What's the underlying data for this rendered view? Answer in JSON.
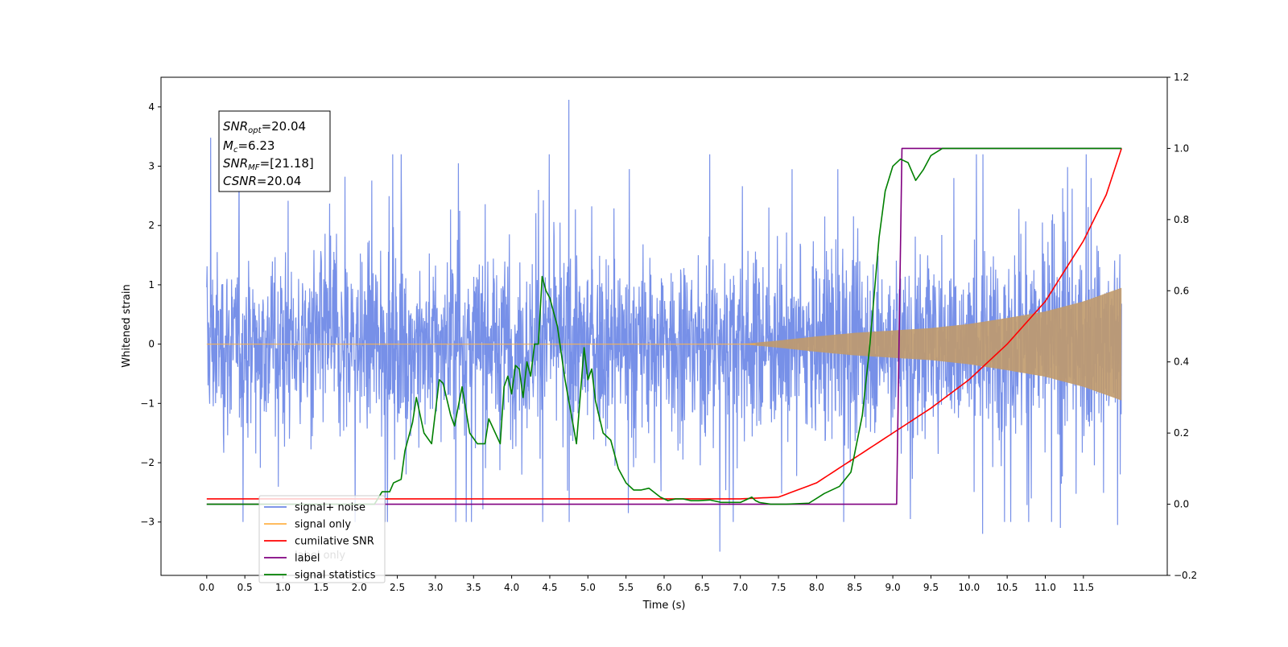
{
  "chart_data": {
    "type": "line",
    "xlabel": "Time (s)",
    "ylabel": "Whitened strain",
    "xlim": [
      -0.6,
      12.6
    ],
    "ylim": [
      -3.9,
      4.5
    ],
    "ylim_right": [
      -0.2,
      1.2
    ],
    "x_ticks": [
      0.0,
      0.5,
      1.0,
      1.5,
      2.0,
      2.5,
      3.0,
      3.5,
      4.0,
      4.5,
      5.0,
      5.5,
      6.0,
      6.5,
      7.0,
      7.5,
      8.0,
      8.5,
      9.0,
      9.5,
      10.0,
      10.5,
      11.0,
      11.5
    ],
    "x_tick_labels": [
      "0.0",
      "0.5",
      "1.0",
      "1.5",
      "2.0",
      "2.5",
      "3.0",
      "3.5",
      "4.0",
      "4.5",
      "5.0",
      "5.5",
      "6.0",
      "6.5",
      "7.0",
      "7.5",
      "8.0",
      "8.5",
      "9.0",
      "9.5",
      "10.0",
      "10.5",
      "11.0",
      "11.5"
    ],
    "y_ticks": [
      -3,
      -2,
      -1,
      0,
      1,
      2,
      3,
      4
    ],
    "y_tick_labels": [
      "−3",
      "−2",
      "−1",
      "0",
      "1",
      "2",
      "3",
      "4"
    ],
    "y_right_ticks": [
      -0.2,
      0.0,
      0.2,
      0.4,
      0.6,
      0.8,
      1.0,
      1.2
    ],
    "y_right_tick_labels": [
      "−0.2",
      "0.0",
      "0.2",
      "0.4",
      "0.6",
      "0.8",
      "1.0",
      "1.2"
    ],
    "grid": false,
    "legend_position": "bottom-left",
    "series": [
      {
        "name": "signal+ noise",
        "color": "#6b87e6",
        "axis": "left",
        "x_range": [
          0.0,
          12.0
        ],
        "envelope": {
          "typical_abs": 1.3,
          "peak_max": 4.12,
          "peak_min": -3.5
        },
        "peaks": [
          [
            0.05,
            3.48
          ],
          [
            4.75,
            4.12
          ],
          [
            6.73,
            -3.5
          ],
          [
            11.95,
            3.48
          ],
          [
            10.18,
            -3.2
          ],
          [
            11.2,
            -3.1
          ],
          [
            11.95,
            -3.05
          ],
          [
            5.53,
            -2.85
          ],
          [
            9.23,
            -2.95
          ],
          [
            2.55,
            3.2
          ],
          [
            3.3,
            3.05
          ],
          [
            4.35,
            2.6
          ],
          [
            7.68,
            2.95
          ],
          [
            8.28,
            2.95
          ],
          [
            9.8,
            2.8
          ],
          [
            11.6,
            2.8
          ]
        ]
      },
      {
        "name": "signal only",
        "color": "#ffb347",
        "axis": "left",
        "x": [
          0.0,
          7.0,
          7.5,
          8.0,
          8.5,
          9.0,
          9.5,
          10.0,
          10.5,
          11.0,
          11.5,
          12.0
        ],
        "amplitude": [
          0.0,
          0.0,
          0.06,
          0.13,
          0.19,
          0.23,
          0.27,
          0.34,
          0.44,
          0.55,
          0.72,
          0.95
        ]
      },
      {
        "name": "cumilative SNR",
        "color": "#ff0000",
        "axis": "right",
        "x": [
          0.0,
          7.0,
          7.5,
          8.0,
          8.5,
          9.0,
          9.5,
          10.0,
          10.5,
          11.0,
          11.5,
          11.8,
          12.0
        ],
        "y": [
          0.015,
          0.015,
          0.02,
          0.06,
          0.13,
          0.2,
          0.27,
          0.35,
          0.45,
          0.57,
          0.74,
          0.87,
          1.0
        ]
      },
      {
        "name": "label",
        "color": "#800080",
        "axis": "right",
        "x": [
          0.0,
          9.05,
          9.12,
          12.0
        ],
        "y": [
          0.0,
          0.0,
          1.0,
          1.0
        ]
      },
      {
        "name": "signal statistics",
        "color": "#008000",
        "axis": "right",
        "x": [
          0.0,
          2.2,
          2.3,
          2.4,
          2.45,
          2.55,
          2.6,
          2.7,
          2.75,
          2.85,
          2.95,
          3.05,
          3.1,
          3.2,
          3.25,
          3.35,
          3.45,
          3.55,
          3.65,
          3.7,
          3.85,
          3.9,
          3.95,
          4.0,
          4.05,
          4.1,
          4.15,
          4.2,
          4.25,
          4.3,
          4.35,
          4.4,
          4.45,
          4.5,
          4.6,
          4.7,
          4.8,
          4.85,
          4.95,
          5.0,
          5.05,
          5.1,
          5.2,
          5.3,
          5.4,
          5.5,
          5.6,
          5.7,
          5.8,
          5.95,
          6.05,
          6.15,
          6.25,
          6.35,
          6.45,
          6.6,
          6.75,
          7.0,
          7.15,
          7.2,
          7.25,
          7.4,
          7.6,
          7.9,
          8.1,
          8.3,
          8.45,
          8.6,
          8.7,
          8.82,
          8.9,
          9.0,
          9.1,
          9.2,
          9.3,
          9.4,
          9.5,
          9.65,
          9.8,
          10.0,
          12.0
        ],
        "y": [
          0.0,
          0.0,
          0.035,
          0.035,
          0.06,
          0.07,
          0.15,
          0.23,
          0.3,
          0.2,
          0.17,
          0.35,
          0.34,
          0.25,
          0.22,
          0.33,
          0.2,
          0.17,
          0.17,
          0.24,
          0.17,
          0.33,
          0.36,
          0.31,
          0.39,
          0.38,
          0.3,
          0.4,
          0.36,
          0.45,
          0.45,
          0.64,
          0.6,
          0.58,
          0.5,
          0.35,
          0.23,
          0.17,
          0.44,
          0.35,
          0.38,
          0.29,
          0.2,
          0.18,
          0.1,
          0.06,
          0.04,
          0.04,
          0.045,
          0.02,
          0.01,
          0.015,
          0.015,
          0.01,
          0.01,
          0.012,
          0.005,
          0.005,
          0.02,
          0.01,
          0.005,
          0.0,
          0.0,
          0.003,
          0.03,
          0.05,
          0.09,
          0.25,
          0.45,
          0.75,
          0.88,
          0.95,
          0.97,
          0.96,
          0.91,
          0.94,
          0.98,
          1.0,
          1.0,
          1.0,
          1.0
        ]
      }
    ]
  },
  "annotation": {
    "lines": [
      {
        "sym": "SNR",
        "sub": "opt",
        "rest": "=20.04"
      },
      {
        "sym": "M",
        "sub": "c",
        "rest": "=6.23"
      },
      {
        "sym": "SNR",
        "sub": "MF",
        "rest": "=[21.18]"
      },
      {
        "sym": "CSNR",
        "sub": "",
        "rest": "=20.04"
      }
    ]
  },
  "legend": {
    "hidden_text": "label only",
    "items": [
      {
        "label": "signal+ noise",
        "color": "#6b87e6"
      },
      {
        "label": "signal only",
        "color": "#ffb347"
      },
      {
        "label": "cumilative SNR",
        "color": "#ff0000"
      },
      {
        "label": "label",
        "color": "#800080"
      },
      {
        "label": "signal statistics",
        "color": "#008000"
      }
    ]
  }
}
